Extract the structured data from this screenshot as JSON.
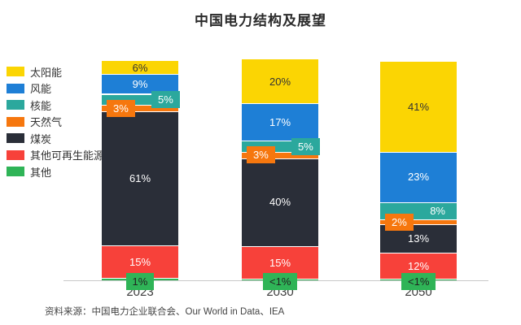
{
  "title": "中国电力结构及展望",
  "source_note": "资料来源：中国电力企业联合会、Our World in Data、IEA",
  "axis_color": "#c9c9c9",
  "chart_data": {
    "type": "bar",
    "stacked": true,
    "title": "中国电力结构及展望",
    "categories": [
      "2023",
      "2030",
      "2050"
    ],
    "unit": "%",
    "ylim": [
      0,
      100
    ],
    "grid": false,
    "legend_position": "left",
    "series": [
      {
        "id": "solar",
        "name": "太阳能",
        "color": "#fbd503",
        "label_color": "#333333",
        "values": [
          6,
          20,
          41
        ],
        "labels": [
          "6%",
          "20%",
          "41%"
        ]
      },
      {
        "id": "wind",
        "name": "风能",
        "color": "#1e7fd6",
        "label_color": "#ffffff",
        "values": [
          9,
          17,
          23
        ],
        "labels": [
          "9%",
          "17%",
          "23%"
        ]
      },
      {
        "id": "nuclear",
        "name": "核能",
        "color": "#2ba89d",
        "label_color": "#ffffff",
        "values": [
          5,
          5,
          8
        ],
        "labels": [
          "5%",
          "5%",
          "8%"
        ]
      },
      {
        "id": "natural-gas",
        "name": "天然气",
        "color": "#f6770e",
        "label_color": "#ffffff",
        "values": [
          3,
          3,
          2
        ],
        "labels": [
          "3%",
          "3%",
          "2%"
        ]
      },
      {
        "id": "coal",
        "name": "煤炭",
        "color": "#2a2e38",
        "label_color": "#ffffff",
        "values": [
          61,
          40,
          13
        ],
        "labels": [
          "61%",
          "40%",
          "13%"
        ]
      },
      {
        "id": "other-renewables",
        "name": "其他可再生能源",
        "color": "#f7413a",
        "label_color": "#ffffff",
        "values": [
          15,
          15,
          12
        ],
        "labels": [
          "15%",
          "15%",
          "12%"
        ]
      },
      {
        "id": "other",
        "name": "其他",
        "color": "#2fb457",
        "label_color": "#222222",
        "values": [
          1,
          0.6,
          0.6
        ],
        "labels": [
          "1%",
          "<1%",
          "<1%"
        ]
      }
    ]
  }
}
